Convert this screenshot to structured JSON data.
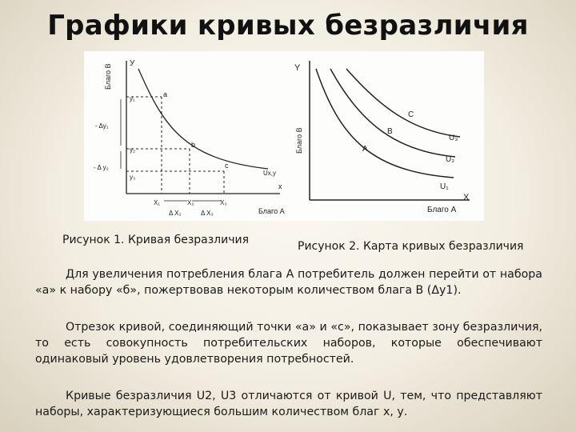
{
  "title": "Графики кривых безразличия",
  "figure1": {
    "axis_y": "У",
    "axis_y_name": "Благо В",
    "axis_x": "х",
    "axis_x_name": "Благо А",
    "y_ticks": [
      "у₁",
      "у₂",
      "у₃"
    ],
    "delta_y": [
      "- Δу₁",
      "- Δ у₂"
    ],
    "x_ticks": [
      "Х₁",
      "Х₂",
      "Х₃"
    ],
    "delta_x": [
      "Δ Х₂",
      "Δ Х₃"
    ],
    "points": [
      "а",
      "b",
      "с"
    ],
    "curve": "Uх,у"
  },
  "figure2": {
    "axis_y": "Y",
    "axis_y_name": "Благо В",
    "axis_x": "X",
    "axis_x_name": "Благо А",
    "points": [
      "А",
      "В",
      "С"
    ],
    "curves": [
      "U₁",
      "U₂",
      "U₃"
    ]
  },
  "captions": {
    "fig1": "Рисунок 1. Кривая безразличия",
    "fig2": "Рисунок 2. Карта кривых безразличия"
  },
  "paragraphs": [
    "Для увеличения потребления блага А потребитель должен перейти от набора «а» к набору «б», пожертвовав некоторым количеством блага В (Δу1).",
    "Отрезок кривой, соединяющий точки «а» и «с», показывает зону безразличия, то есть совокупность потребительских наборов, которые обеспечивают одинаковый уровень удовлетворения потребностей.",
    "Кривые безразличия U2, U3 отличаются от кривой U, тем, что представляют наборы, характеризующиеся большим количеством благ х, у."
  ]
}
